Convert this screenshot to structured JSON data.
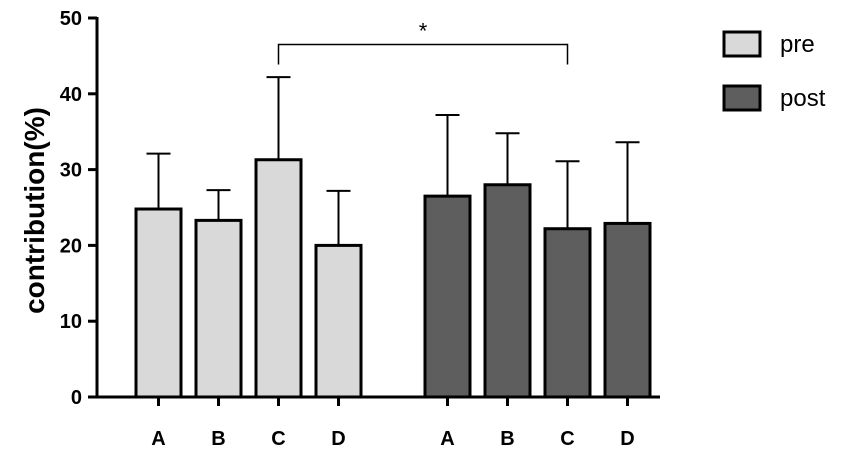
{
  "chart_data": {
    "type": "bar",
    "title": "",
    "xlabel": "",
    "ylabel": "contribution(%)",
    "ylim": [
      0,
      50
    ],
    "yticks": [
      0,
      10,
      20,
      30,
      40,
      50
    ],
    "grid": false,
    "legend_position": "top-right",
    "groups": [
      {
        "name": "pre",
        "color": "#d9d9d9",
        "categories": [
          "A",
          "B",
          "C",
          "D"
        ],
        "values": [
          24.8,
          23.3,
          31.3,
          20.0
        ],
        "error_upper": [
          32.1,
          27.3,
          42.2,
          27.2
        ]
      },
      {
        "name": "post",
        "color": "#5e5e5e",
        "categories": [
          "A",
          "B",
          "C",
          "D"
        ],
        "values": [
          26.5,
          28.0,
          22.2,
          22.9
        ],
        "error_upper": [
          37.2,
          34.8,
          31.1,
          33.6
        ]
      }
    ],
    "annotations": [
      {
        "text": "*",
        "from": "pre C",
        "to": "post C",
        "y": 46.5
      }
    ]
  }
}
